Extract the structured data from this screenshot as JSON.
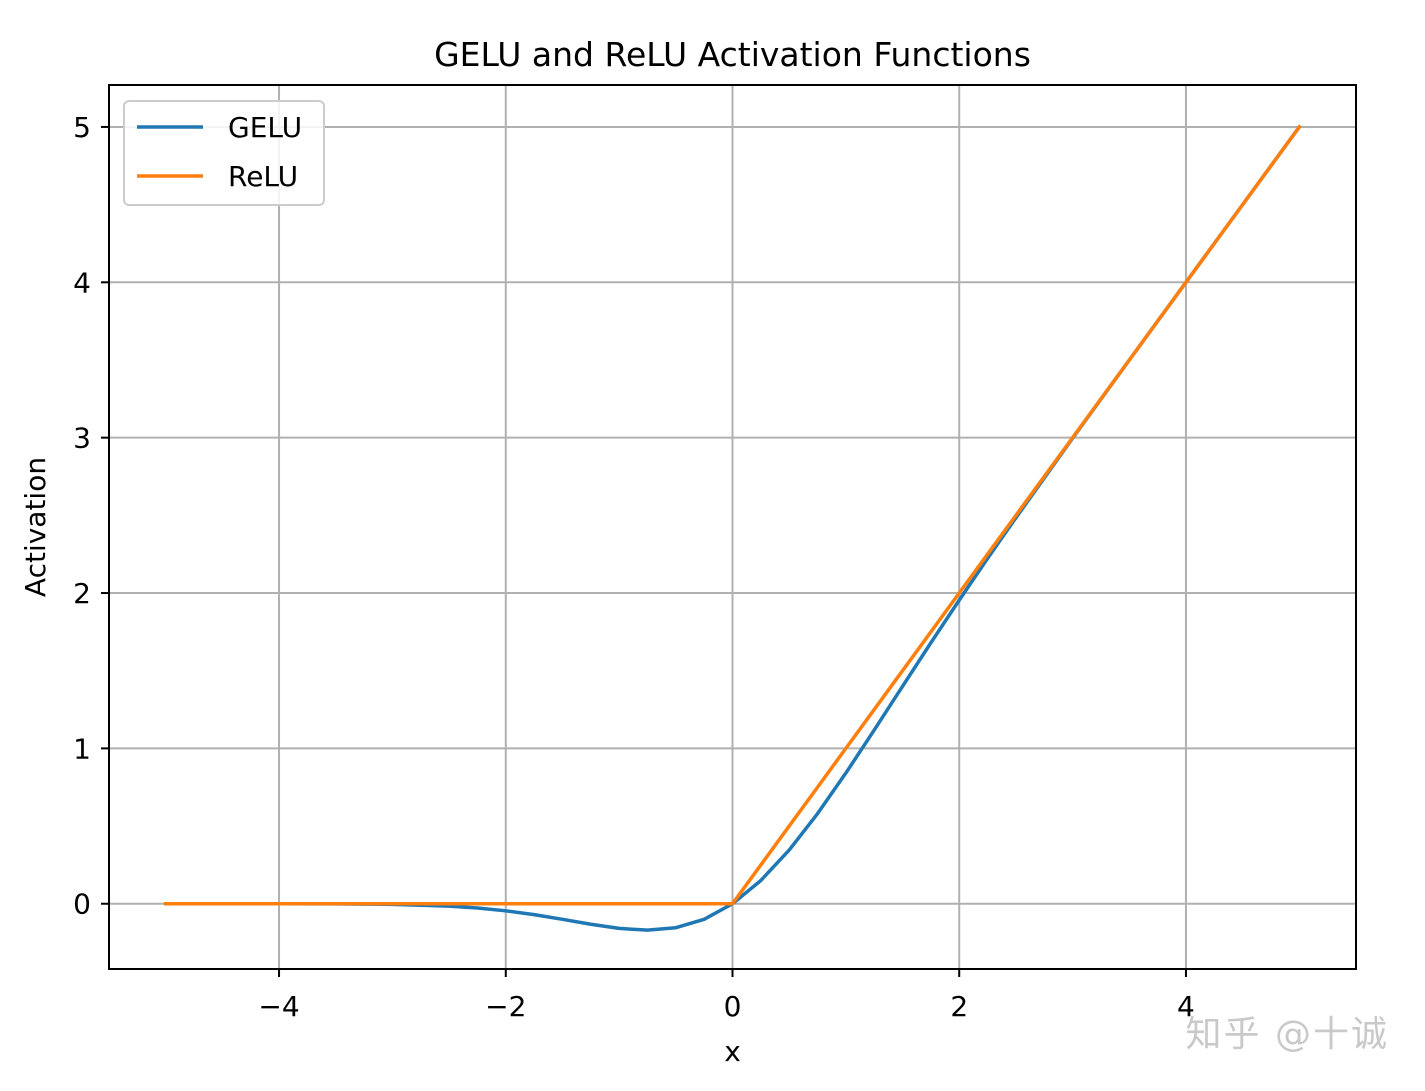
{
  "chart_data": {
    "type": "line",
    "title": "GELU and ReLU Activation Functions",
    "xlabel": "x",
    "ylabel": "Activation",
    "xlim": [
      -5.5,
      5.5
    ],
    "ylim": [
      -0.42,
      5.27
    ],
    "xticks": [
      -4,
      -2,
      0,
      2,
      4
    ],
    "xtick_labels": [
      "−4",
      "−2",
      "0",
      "2",
      "4"
    ],
    "yticks": [
      0,
      1,
      2,
      3,
      4,
      5
    ],
    "ytick_labels": [
      "0",
      "1",
      "2",
      "3",
      "4",
      "5"
    ],
    "grid": true,
    "legend_position": "top-left",
    "x": [
      -5,
      -4.5,
      -4,
      -3.5,
      -3,
      -2.5,
      -2.25,
      -2,
      -1.75,
      -1.5,
      -1.25,
      -1,
      -0.75,
      -0.5,
      -0.25,
      0,
      0.25,
      0.5,
      0.75,
      1,
      1.25,
      1.5,
      1.75,
      2,
      2.25,
      2.5,
      3,
      3.5,
      4,
      4.5,
      5
    ],
    "series": [
      {
        "name": "GELU",
        "color": "#1f77b4",
        "values": [
          0,
          0,
          -0.0001,
          -0.0008,
          -0.004,
          -0.0155,
          -0.0274,
          -0.0455,
          -0.0702,
          -0.1002,
          -0.1321,
          -0.1587,
          -0.17,
          -0.1543,
          -0.1003,
          0,
          0.1497,
          0.3457,
          0.58,
          0.8413,
          1.1179,
          1.3998,
          1.6799,
          1.9545,
          2.2226,
          2.4845,
          2.996,
          3.4992,
          3.9999,
          4.5,
          5
        ]
      },
      {
        "name": "ReLU",
        "color": "#ff7f0e",
        "values": [
          0,
          0,
          0,
          0,
          0,
          0,
          0,
          0,
          0,
          0,
          0,
          0,
          0,
          0,
          0,
          0,
          0.25,
          0.5,
          0.75,
          1,
          1.25,
          1.5,
          1.75,
          2,
          2.25,
          2.5,
          3,
          3.5,
          4,
          4.5,
          5
        ]
      }
    ]
  },
  "watermark": "知乎 @十诚"
}
